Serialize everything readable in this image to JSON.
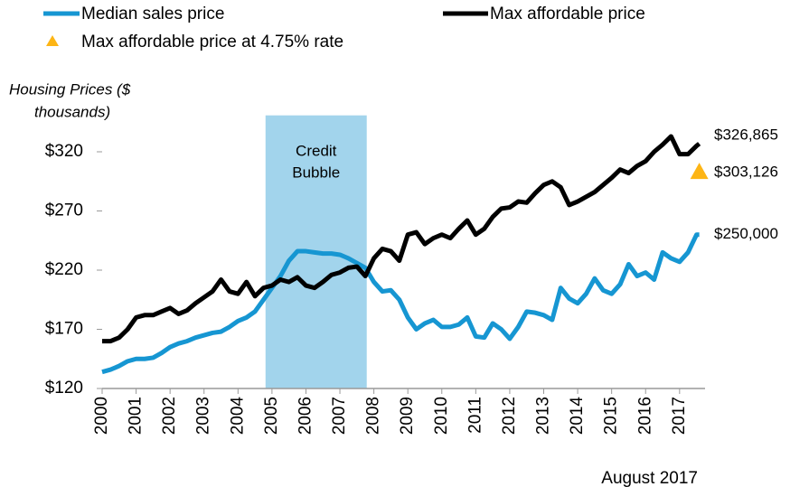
{
  "chart_data": {
    "type": "line",
    "ylabel": [
      "Housing Prices ($",
      "thousands)"
    ],
    "note": "August 2017",
    "x": [
      2000,
      2000.25,
      2000.5,
      2000.75,
      2001,
      2001.25,
      2001.5,
      2001.75,
      2002,
      2002.25,
      2002.5,
      2002.75,
      2003,
      2003.25,
      2003.5,
      2003.75,
      2004,
      2004.25,
      2004.5,
      2004.75,
      2005,
      2005.25,
      2005.5,
      2005.75,
      2006,
      2006.25,
      2006.5,
      2006.75,
      2007,
      2007.25,
      2007.5,
      2007.75,
      2008,
      2008.25,
      2008.5,
      2008.75,
      2009,
      2009.25,
      2009.5,
      2009.75,
      2010,
      2010.25,
      2010.5,
      2010.75,
      2011,
      2011.25,
      2011.5,
      2011.75,
      2012,
      2012.25,
      2012.5,
      2012.75,
      2013,
      2013.25,
      2013.5,
      2013.75,
      2014,
      2014.25,
      2014.5,
      2014.75,
      2015,
      2015.25,
      2015.5,
      2015.75,
      2016,
      2016.25,
      2016.5,
      2016.75,
      2017,
      2017.25,
      2017.5,
      2017.58
    ],
    "series": [
      {
        "name": "Median sales price",
        "color": "#1696d2",
        "end_label": "$250,000",
        "values": [
          134,
          136,
          139,
          143,
          145,
          145,
          146,
          150,
          155,
          158,
          160,
          163,
          165,
          167,
          168,
          172,
          177,
          180,
          185,
          195,
          205,
          215,
          228,
          236,
          236,
          235,
          234,
          234,
          233,
          230,
          226,
          222,
          210,
          202,
          203,
          195,
          180,
          170,
          175,
          178,
          172,
          172,
          174,
          180,
          164,
          163,
          175,
          170,
          162,
          172,
          185,
          184,
          182,
          178,
          205,
          196,
          192,
          200,
          213,
          203,
          200,
          208,
          225,
          215,
          218,
          212,
          235,
          230,
          227,
          235,
          250,
          250
        ]
      },
      {
        "name": "Max affordable price",
        "color": "#000000",
        "end_label": "$326,865",
        "values": [
          160,
          160,
          163,
          170,
          180,
          182,
          182,
          185,
          188,
          183,
          186,
          192,
          197,
          202,
          212,
          202,
          200,
          210,
          198,
          205,
          207,
          212,
          210,
          214,
          207,
          205,
          210,
          216,
          218,
          222,
          223,
          215,
          230,
          238,
          236,
          228,
          250,
          252,
          242,
          247,
          250,
          247,
          255,
          262,
          250,
          255,
          265,
          272,
          273,
          278,
          277,
          285,
          292,
          295,
          290,
          275,
          278,
          282,
          286,
          292,
          298,
          305,
          302,
          308,
          312,
          320,
          326,
          333,
          318,
          318,
          325,
          326.865
        ]
      }
    ],
    "point": {
      "name": "Max affordable price at 4.75% rate",
      "color": "#fdb515",
      "x": 2017.58,
      "value": 303.126,
      "label": "$303,126"
    },
    "shaded_region": {
      "label": [
        "Credit",
        "Bubble"
      ],
      "x": [
        2004.81,
        2007.79
      ],
      "color": "#a2d4ec"
    },
    "xlim": [
      2000,
      2017.75
    ],
    "xticks": [
      2000,
      2001,
      2002,
      2003,
      2004,
      2005,
      2006,
      2007,
      2008,
      2009,
      2010,
      2011,
      2012,
      2013,
      2014,
      2015,
      2016,
      2017
    ],
    "ylim": [
      120,
      350
    ],
    "yticks": [
      {
        "value": 120,
        "label": "$120"
      },
      {
        "value": 170,
        "label": "$170"
      },
      {
        "value": 220,
        "label": "$220"
      },
      {
        "value": 270,
        "label": "$270"
      },
      {
        "value": 320,
        "label": "$320"
      }
    ]
  }
}
